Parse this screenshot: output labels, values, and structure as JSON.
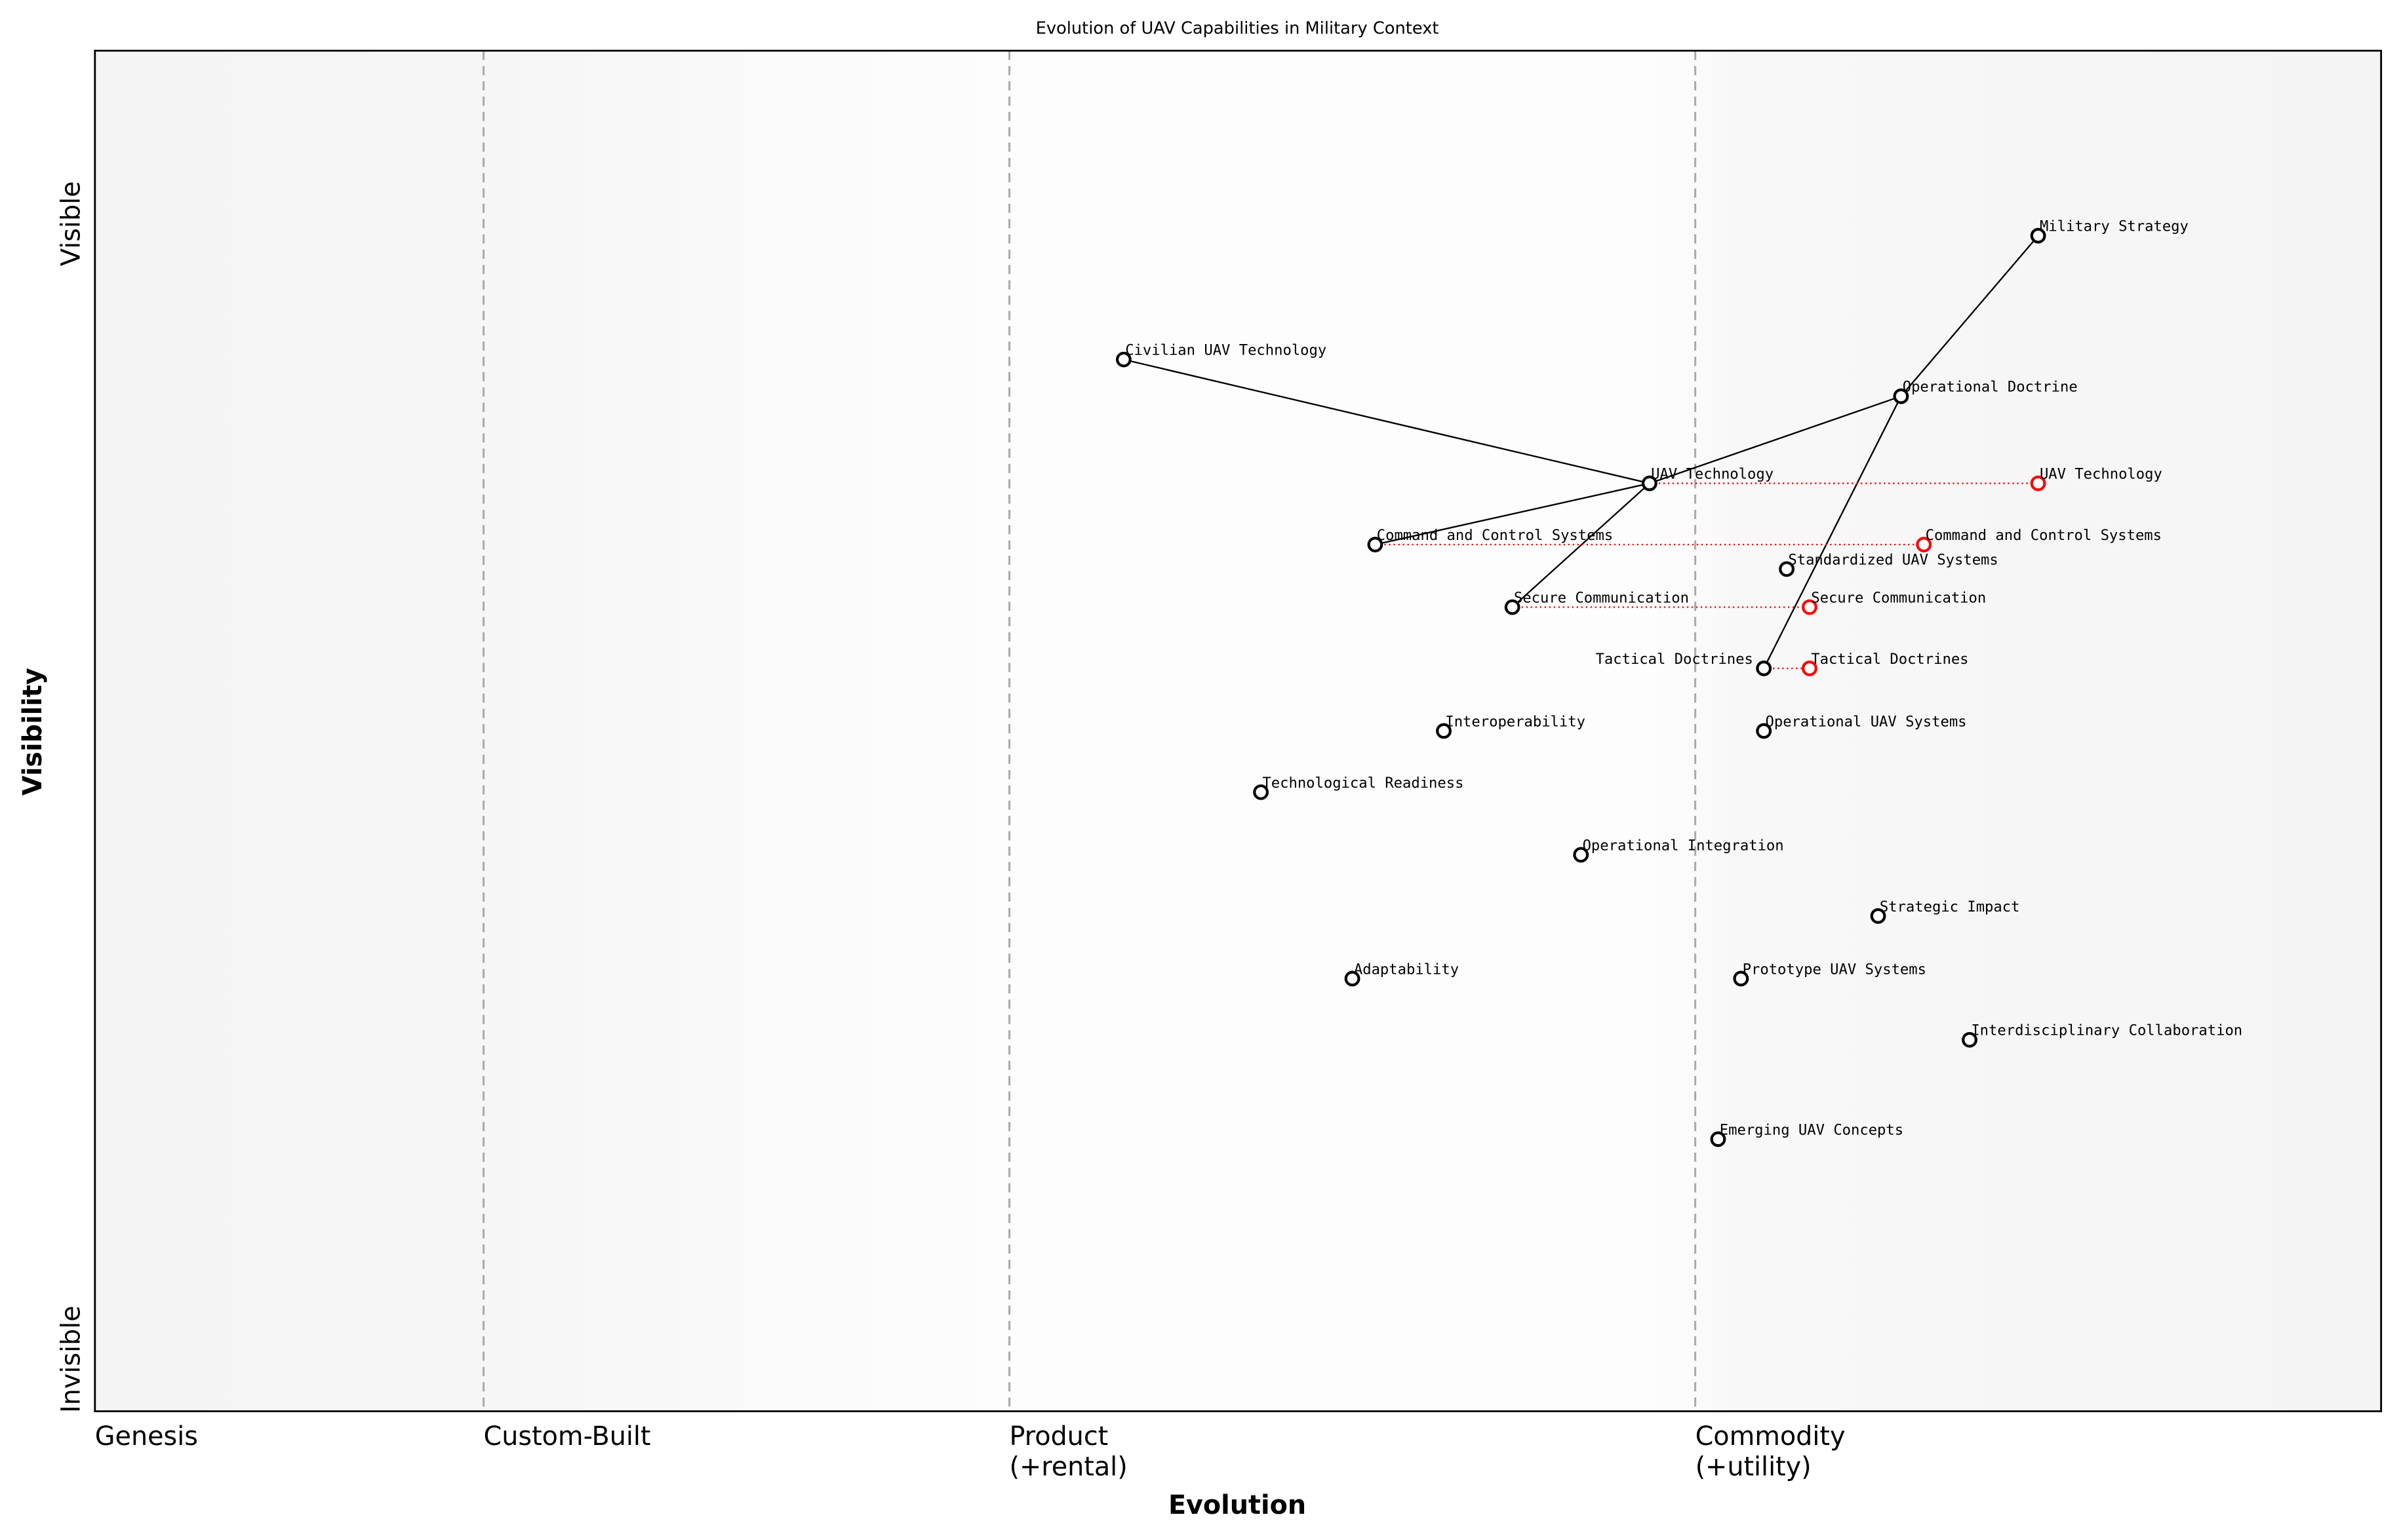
{
  "title": "Evolution of UAV Capabilities in Military Context",
  "xlabel": "Evolution",
  "ylabel": "Visibility",
  "y_ticks": {
    "top": "Visible",
    "bottom": "Invisible"
  },
  "stages": [
    {
      "label": "Genesis",
      "x": 0.0
    },
    {
      "label": "Custom-Built",
      "x": 0.17
    },
    {
      "label": "Product\n(+rental)",
      "x": 0.4
    },
    {
      "label": "Commodity\n(+utility)",
      "x": 0.7
    }
  ],
  "colors": {
    "component": "#000000",
    "evolved": "#ff0000",
    "stage_line": "#aaaaaa"
  },
  "chart_data": {
    "type": "scatter",
    "title": "Evolution of UAV Capabilities in Military Context",
    "xlabel": "Evolution",
    "ylabel": "Visibility",
    "xlim": [
      0,
      1
    ],
    "ylim": [
      0,
      1
    ],
    "components": [
      {
        "name": "Military Strategy",
        "x": 0.85,
        "y": 0.864
      },
      {
        "name": "Civilian UAV Technology",
        "x": 0.45,
        "y": 0.773
      },
      {
        "name": "Operational Doctrine",
        "x": 0.79,
        "y": 0.746
      },
      {
        "name": "UAV Technology",
        "x": 0.68,
        "y": 0.682
      },
      {
        "name": "Command and Control Systems",
        "x": 0.56,
        "y": 0.637
      },
      {
        "name": "Standardized UAV Systems",
        "x": 0.74,
        "y": 0.619
      },
      {
        "name": "Secure Communication",
        "x": 0.62,
        "y": 0.591
      },
      {
        "name": "Tactical Doctrines",
        "x": 0.73,
        "y": 0.546
      },
      {
        "name": "Operational UAV Systems",
        "x": 0.73,
        "y": 0.5
      },
      {
        "name": "Interoperability",
        "x": 0.59,
        "y": 0.5
      },
      {
        "name": "Technological Readiness",
        "x": 0.51,
        "y": 0.455
      },
      {
        "name": "Operational Integration",
        "x": 0.65,
        "y": 0.409
      },
      {
        "name": "Strategic Impact",
        "x": 0.78,
        "y": 0.364
      },
      {
        "name": "Adaptability",
        "x": 0.55,
        "y": 0.318
      },
      {
        "name": "Prototype UAV Systems",
        "x": 0.72,
        "y": 0.318
      },
      {
        "name": "Interdisciplinary Collaboration",
        "x": 0.82,
        "y": 0.273
      },
      {
        "name": "Emerging UAV Concepts",
        "x": 0.71,
        "y": 0.2
      }
    ],
    "evolved": [
      {
        "name": "UAV Technology",
        "x": 0.85,
        "y": 0.682
      },
      {
        "name": "Command and Control Systems",
        "x": 0.8,
        "y": 0.637
      },
      {
        "name": "Secure Communication",
        "x": 0.75,
        "y": 0.591
      },
      {
        "name": "Tactical Doctrines",
        "x": 0.75,
        "y": 0.546
      }
    ],
    "links": [
      [
        "Military Strategy",
        "Operational Doctrine"
      ],
      [
        "Operational Doctrine",
        "UAV Technology"
      ],
      [
        "Operational Doctrine",
        "Tactical Doctrines"
      ],
      [
        "Civilian UAV Technology",
        "UAV Technology"
      ],
      [
        "Command and Control Systems",
        "UAV Technology"
      ],
      [
        "Secure Communication",
        "UAV Technology"
      ]
    ]
  }
}
